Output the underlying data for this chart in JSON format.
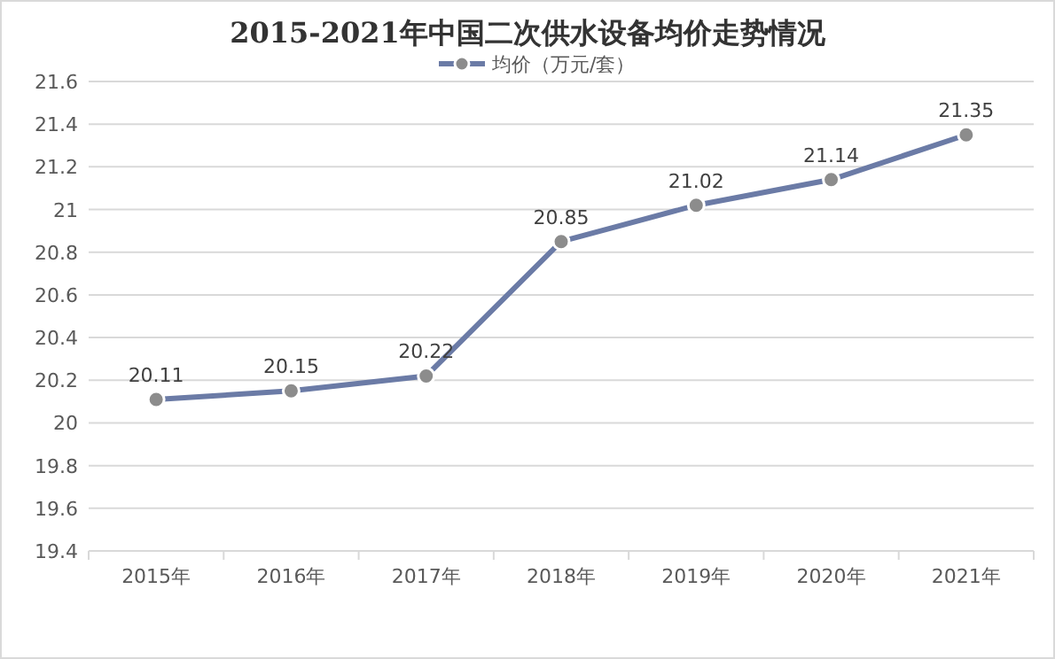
{
  "chart_data": {
    "type": "line",
    "title": "2015-2021年中国二次供水设备均价走势情况",
    "categories": [
      "2015年",
      "2016年",
      "2017年",
      "2018年",
      "2019年",
      "2020年",
      "2021年"
    ],
    "series": [
      {
        "name": "均价（万元/套）",
        "color": "#6b7ba6",
        "values": [
          20.11,
          20.15,
          20.22,
          20.85,
          21.02,
          21.14,
          21.35
        ]
      }
    ],
    "ylim": [
      19.4,
      21.6
    ],
    "yticks": [
      19.4,
      19.6,
      19.8,
      20,
      20.2,
      20.4,
      20.6,
      20.8,
      21,
      21.2,
      21.4,
      21.6
    ],
    "grid": "y",
    "legend": "top",
    "marker": "circle",
    "line_style": "solid",
    "data_labels": true
  }
}
